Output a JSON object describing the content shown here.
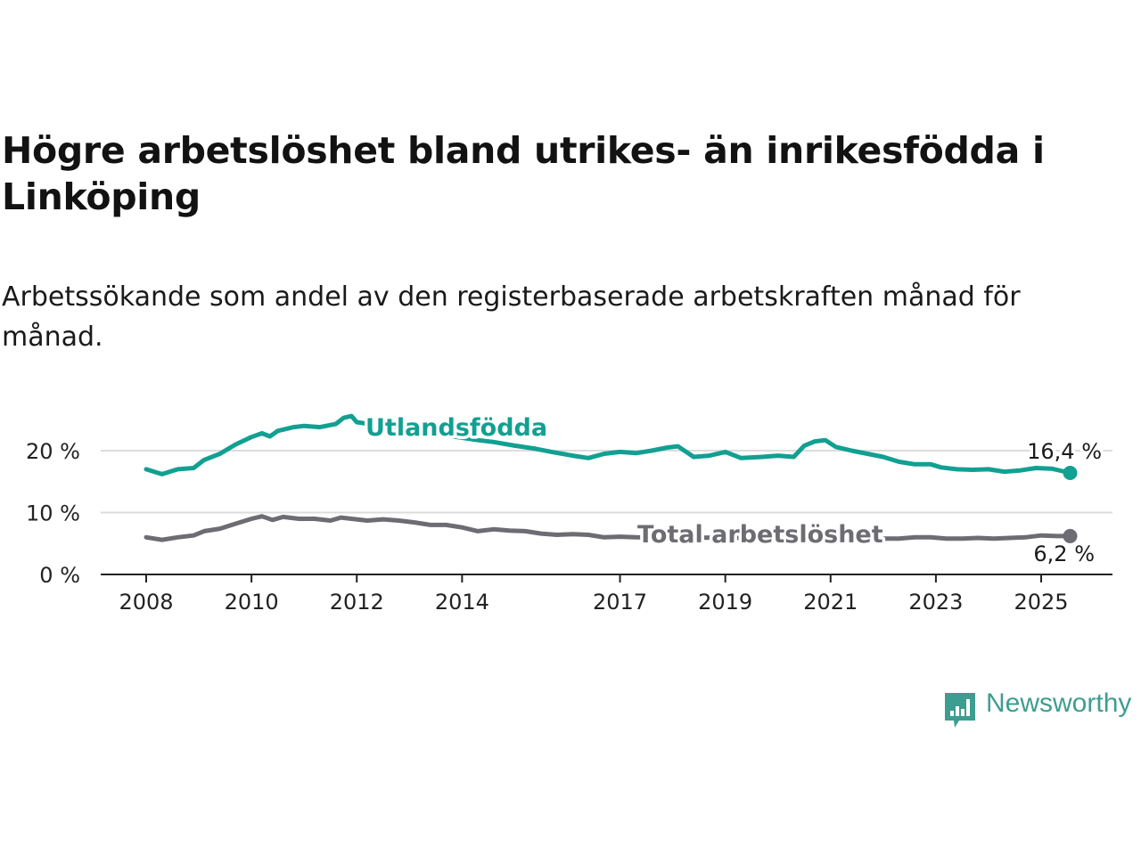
{
  "title": "Högre arbetslöshet bland utrikes- än inrikesfödda i Linköping",
  "subtitle": "Arbetssökande som andel av den registerbaserade arbetskraften månad för månad.",
  "brand": {
    "name": "Newsworthy",
    "color": "#3d9d91"
  },
  "colors": {
    "foreign": "#11a091",
    "total": "#6e6c73",
    "grid": "#dcdcdc",
    "axis": "#222222"
  },
  "chart_data": {
    "type": "line",
    "title": "Högre arbetslöshet bland utrikes- än inrikesfödda i Linköping",
    "subtitle": "Arbetssökande som andel av den registerbaserade arbetskraften månad för månad.",
    "xlabel": "",
    "ylabel": "",
    "xlim": [
      2008.0,
      2025.55
    ],
    "ylim": [
      0,
      25
    ],
    "yticks": [
      0,
      10,
      20
    ],
    "ytick_labels": [
      "0 %",
      "10 %",
      "20 %"
    ],
    "xticks": [
      2008,
      2010,
      2012,
      2014,
      2017,
      2019,
      2021,
      2023,
      2025
    ],
    "xtick_labels": [
      "2008",
      "2010",
      "2012",
      "2014",
      "2017",
      "2019",
      "2021",
      "2023",
      "2025"
    ],
    "grid": "horizontal",
    "legend": "inline labels on lines",
    "series": [
      {
        "name": "Utlandsfödda",
        "end_label": "16,4 %",
        "points": [
          [
            2008.0,
            17.0
          ],
          [
            2008.3,
            16.2
          ],
          [
            2008.6,
            17.0
          ],
          [
            2008.9,
            17.2
          ],
          [
            2009.1,
            18.5
          ],
          [
            2009.4,
            19.5
          ],
          [
            2009.7,
            21.0
          ],
          [
            2010.0,
            22.2
          ],
          [
            2010.2,
            22.8
          ],
          [
            2010.35,
            22.3
          ],
          [
            2010.5,
            23.2
          ],
          [
            2010.8,
            23.8
          ],
          [
            2011.0,
            24.0
          ],
          [
            2011.3,
            23.8
          ],
          [
            2011.6,
            24.3
          ],
          [
            2011.75,
            25.3
          ],
          [
            2011.9,
            25.6
          ],
          [
            2012.0,
            24.6
          ],
          [
            2014.3,
            21.7
          ],
          [
            2014.6,
            21.4
          ],
          [
            2015.0,
            20.8
          ],
          [
            2015.4,
            20.3
          ],
          [
            2015.7,
            19.8
          ],
          [
            2016.1,
            19.2
          ],
          [
            2016.4,
            18.8
          ],
          [
            2016.7,
            19.5
          ],
          [
            2017.0,
            19.8
          ],
          [
            2017.3,
            19.6
          ],
          [
            2017.6,
            20.0
          ],
          [
            2017.9,
            20.5
          ],
          [
            2018.1,
            20.7
          ],
          [
            2018.4,
            19.0
          ],
          [
            2018.7,
            19.2
          ],
          [
            2019.0,
            19.8
          ],
          [
            2019.3,
            18.8
          ],
          [
            2019.7,
            19.0
          ],
          [
            2020.0,
            19.2
          ],
          [
            2020.3,
            19.0
          ],
          [
            2020.5,
            20.8
          ],
          [
            2020.7,
            21.5
          ],
          [
            2020.9,
            21.7
          ],
          [
            2021.1,
            20.6
          ],
          [
            2021.4,
            20.0
          ],
          [
            2021.7,
            19.5
          ],
          [
            2022.0,
            19.0
          ],
          [
            2022.3,
            18.2
          ],
          [
            2022.6,
            17.8
          ],
          [
            2022.9,
            17.8
          ],
          [
            2023.1,
            17.3
          ],
          [
            2023.4,
            17.0
          ],
          [
            2023.7,
            16.9
          ],
          [
            2024.0,
            17.0
          ],
          [
            2024.3,
            16.6
          ],
          [
            2024.6,
            16.8
          ],
          [
            2024.9,
            17.2
          ],
          [
            2025.2,
            17.1
          ],
          [
            2025.55,
            16.4
          ]
        ]
      },
      {
        "name": "Total arbetslöshet",
        "end_label": "6,2 %",
        "points": [
          [
            2008.0,
            6.0
          ],
          [
            2008.3,
            5.6
          ],
          [
            2008.6,
            6.0
          ],
          [
            2008.9,
            6.3
          ],
          [
            2009.1,
            7.0
          ],
          [
            2009.4,
            7.4
          ],
          [
            2009.7,
            8.2
          ],
          [
            2010.0,
            9.0
          ],
          [
            2010.2,
            9.4
          ],
          [
            2010.4,
            8.8
          ],
          [
            2010.6,
            9.3
          ],
          [
            2010.9,
            9.0
          ],
          [
            2011.2,
            9.0
          ],
          [
            2011.5,
            8.7
          ],
          [
            2011.7,
            9.2
          ],
          [
            2011.9,
            9.0
          ],
          [
            2012.2,
            8.7
          ],
          [
            2012.5,
            8.9
          ],
          [
            2012.8,
            8.7
          ],
          [
            2013.1,
            8.4
          ],
          [
            2013.4,
            8.0
          ],
          [
            2013.7,
            8.0
          ],
          [
            2014.0,
            7.6
          ],
          [
            2014.3,
            7.0
          ],
          [
            2014.6,
            7.3
          ],
          [
            2014.9,
            7.1
          ],
          [
            2015.2,
            7.0
          ],
          [
            2015.5,
            6.6
          ],
          [
            2015.8,
            6.4
          ],
          [
            2016.1,
            6.5
          ],
          [
            2016.4,
            6.4
          ],
          [
            2016.7,
            6.0
          ],
          [
            2017.0,
            6.1
          ],
          [
            2017.3,
            6.0
          ],
          [
            2022.0,
            5.8
          ],
          [
            2022.3,
            5.8
          ],
          [
            2022.6,
            6.0
          ],
          [
            2022.9,
            6.0
          ],
          [
            2023.2,
            5.8
          ],
          [
            2023.5,
            5.8
          ],
          [
            2023.8,
            5.9
          ],
          [
            2024.1,
            5.8
          ],
          [
            2024.4,
            5.9
          ],
          [
            2024.7,
            6.0
          ],
          [
            2025.0,
            6.3
          ],
          [
            2025.3,
            6.2
          ],
          [
            2025.55,
            6.2
          ]
        ]
      }
    ]
  }
}
